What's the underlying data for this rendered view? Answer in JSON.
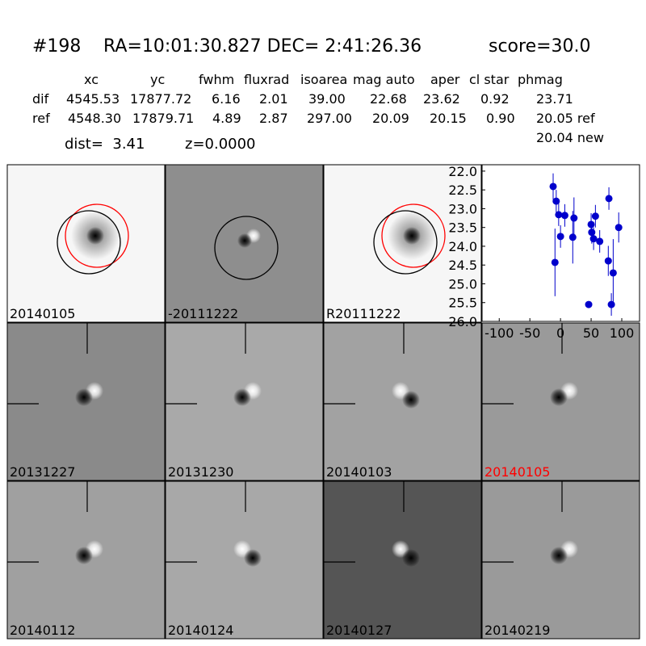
{
  "header": {
    "id": "#198",
    "coords": "RA=10:01:30.827 DEC= 2:41:26.36",
    "score": "score=30.0"
  },
  "table": {
    "columns": [
      "xc",
      "yc",
      "fwhm",
      "fluxrad",
      "isoarea",
      "mag auto",
      "aper",
      "cl star",
      "phmag"
    ],
    "rows": [
      [
        "dif",
        "4545.53",
        "17877.72",
        "6.16",
        "2.01",
        "39.00",
        "22.68",
        "23.62",
        "0.92",
        "23.71"
      ],
      [
        "ref",
        "4548.30",
        "17879.71",
        "4.89",
        "2.87",
        "297.00",
        "20.09",
        "20.15",
        "0.90",
        "20.05 ref"
      ]
    ],
    "note": "20.04 new"
  },
  "dist": "dist=  3.41",
  "z": "z=0.0000",
  "panels": [
    {
      "label": "20140105"
    },
    {
      "label": "-20111222"
    },
    {
      "label": "R20111222"
    },
    {
      "label": "20131227"
    },
    {
      "label": "20131230"
    },
    {
      "label": "20140103"
    },
    {
      "label": "20140105",
      "color": "#ff0000"
    },
    {
      "label": "20140112"
    },
    {
      "label": "20140124"
    },
    {
      "label": "20140127"
    },
    {
      "label": "20140219"
    }
  ],
  "chart_data": {
    "type": "scatter",
    "color": "#0000cc",
    "x": [
      -12,
      -9,
      -7,
      -3,
      0,
      7,
      20,
      22,
      46,
      50,
      51,
      54,
      57,
      64,
      78,
      79,
      83,
      86,
      95
    ],
    "values": [
      22.41,
      24.43,
      22.8,
      23.16,
      23.74,
      23.18,
      23.76,
      23.25,
      25.55,
      23.42,
      23.63,
      23.8,
      23.2,
      23.87,
      24.39,
      22.73,
      25.55,
      24.71,
      23.5
    ],
    "errors": [
      0.35,
      0.9,
      0.3,
      0.3,
      0.3,
      0.3,
      0.7,
      0.55,
      0.05,
      0.3,
      0.3,
      0.3,
      0.3,
      0.3,
      0.4,
      0.3,
      0.3,
      0.9,
      0.4
    ],
    "xlim": [
      -128,
      129
    ],
    "ylim": [
      21.83,
      26.0
    ],
    "y_inverted": true,
    "xticks": [
      -100,
      -50,
      0,
      50,
      100
    ],
    "yticks": [
      {
        "value": 22,
        "label": "22.0"
      },
      22.5,
      {
        "value": 23,
        "label": "23.0"
      },
      23.5,
      {
        "value": 24,
        "label": "24.0"
      },
      24.5,
      {
        "value": 25,
        "label": "25.0"
      },
      25.5,
      {
        "value": 26,
        "label": "26.0"
      }
    ]
  }
}
